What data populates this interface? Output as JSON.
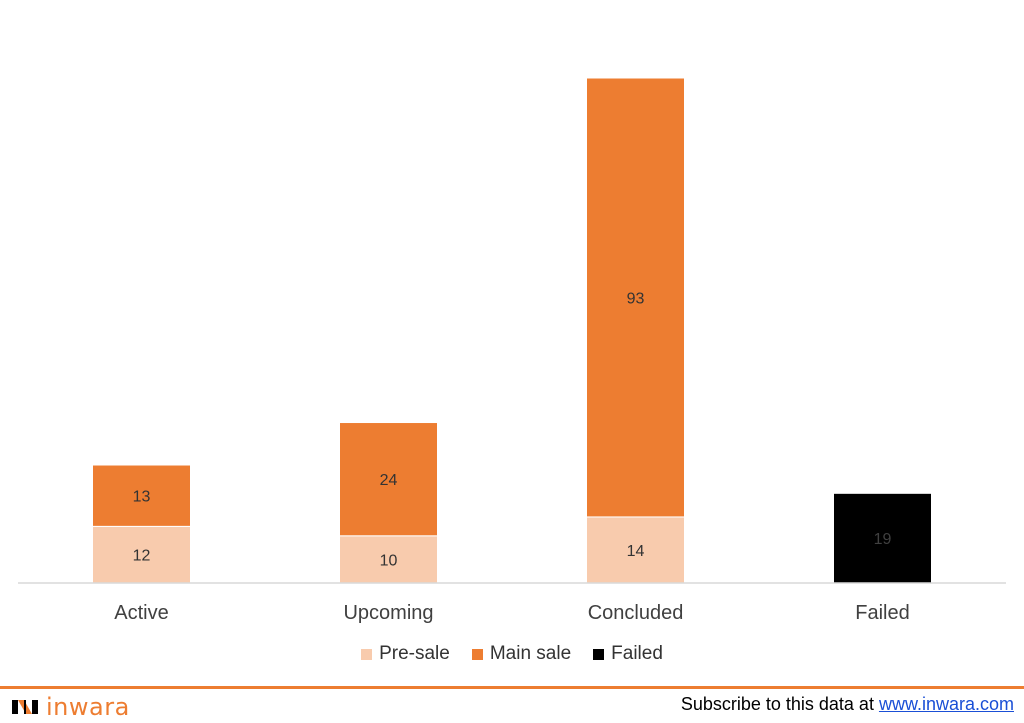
{
  "colors": {
    "presale": "#F8CBAD",
    "mainsale": "#ED7D31",
    "failed": "#000000",
    "axis": "#D9D9D9",
    "brand": "#ED7D31"
  },
  "chart_data": {
    "type": "bar",
    "stacked": true,
    "categories": [
      "Active",
      "Upcoming",
      "Concluded",
      "Failed"
    ],
    "series": [
      {
        "name": "Pre-sale",
        "values": [
          12,
          10,
          14,
          null
        ],
        "color": "#F8CBAD"
      },
      {
        "name": "Main sale",
        "values": [
          13,
          24,
          93,
          null
        ],
        "color": "#ED7D31"
      },
      {
        "name": "Failed",
        "values": [
          null,
          null,
          null,
          19
        ],
        "color": "#000000"
      }
    ],
    "title": "",
    "xlabel": "",
    "ylabel": "",
    "ylim": [
      0,
      110
    ],
    "grid": false,
    "legend": "bottom"
  },
  "footer": {
    "logo_text": "inwara",
    "logo_icon": "inwara-logo-icon",
    "subscribe_prefix": "Subscribe to this data at ",
    "subscribe_link": "www.inwara.com"
  }
}
